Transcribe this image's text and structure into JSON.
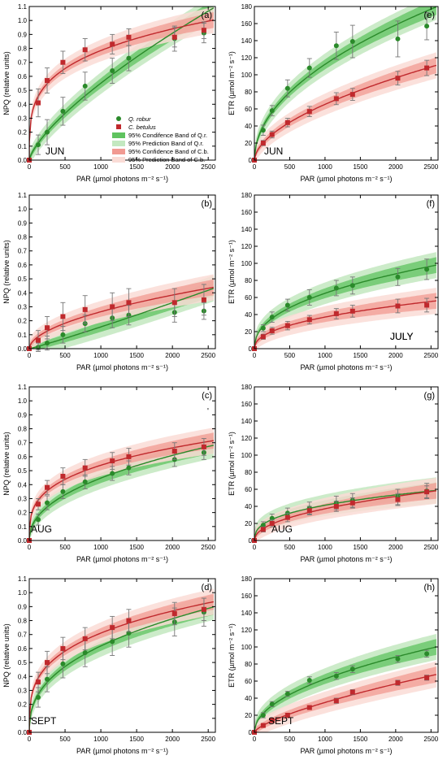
{
  "colors": {
    "qr": "#2a8a2a",
    "qr_conf": "#5fc35f",
    "qr_pred": "#c3e8c0",
    "cb": "#c0292d",
    "cb_conf": "#f19a92",
    "cb_pred": "#fadcd6"
  },
  "legend": {
    "qr_label": "Q. robur",
    "cb_label": "C. betulus",
    "qr_conf_label": "95% Condifence Band of Q.r.",
    "qr_pred_label": "95% Prediction Band of Q.r.",
    "cb_conf_label": "95% Confidence Band of C.b.",
    "cb_pred_label": "95% Prediction Band of C.b."
  },
  "stray_mark": "'",
  "chart_data": [
    {
      "panel": "(a)",
      "month": "JUN",
      "type": "scatter",
      "ylabel": "NPQ (relative units)",
      "xlabel": "PAR (µmol photons m⁻² s⁻¹)",
      "xlim": [
        0,
        2600
      ],
      "ylim": [
        0,
        1.1
      ],
      "yticks": [
        "0.0",
        "0.1",
        "0.2",
        "0.3",
        "0.4",
        "0.5",
        "0.6",
        "0.7",
        "0.8",
        "0.9",
        "1.0",
        "1.1"
      ],
      "xticks": [
        "0",
        "500",
        "1000",
        "1500",
        "2000",
        "2500"
      ],
      "x": [
        0,
        125,
        250,
        470,
        780,
        1160,
        1390,
        2030,
        2440
      ],
      "series": [
        {
          "name": "Q. robur",
          "values": [
            0,
            0.11,
            0.2,
            0.35,
            0.53,
            0.64,
            0.73,
            0.87,
            0.91
          ],
          "errors": [
            0,
            0.07,
            0.09,
            0.1,
            0.1,
            0.09,
            0.09,
            0.09,
            0.07
          ]
        },
        {
          "name": "C. betulus",
          "values": [
            0,
            0.41,
            0.57,
            0.7,
            0.79,
            0.83,
            0.88,
            0.88,
            0.93
          ],
          "errors": [
            0,
            0.1,
            0.09,
            0.08,
            0.08,
            0.07,
            0.06,
            0.07,
            0.06
          ]
        }
      ]
    },
    {
      "panel": "(e)",
      "month": "JUN",
      "type": "scatter",
      "ylabel": "ETR (µmol m⁻² s⁻¹)",
      "xlabel": "PAR (µmol photons m⁻² s⁻¹)",
      "xlim": [
        0,
        2600
      ],
      "ylim": [
        0,
        180
      ],
      "yticks": [
        "0",
        "20",
        "40",
        "60",
        "80",
        "100",
        "120",
        "140",
        "160",
        "180"
      ],
      "xticks": [
        "0",
        "500",
        "1000",
        "1500",
        "2000",
        "2500"
      ],
      "x": [
        0,
        125,
        250,
        470,
        780,
        1160,
        1390,
        2030,
        2440
      ],
      "series": [
        {
          "name": "Q. robur",
          "values": [
            0,
            35,
            58,
            84,
            108,
            134,
            139,
            142,
            157
          ],
          "errors": [
            0,
            6,
            6,
            10,
            11,
            16,
            19,
            21,
            16
          ]
        },
        {
          "name": "C. betulus",
          "values": [
            0,
            20,
            30,
            44,
            57,
            72,
            77,
            96,
            108
          ],
          "errors": [
            0,
            3,
            4,
            5,
            6,
            7,
            7,
            8,
            9
          ]
        }
      ]
    },
    {
      "panel": "(b)",
      "month": "JULY",
      "type": "scatter",
      "ylabel": "NPQ (relative units)",
      "xlabel": "PAR (µmol photons m⁻² s⁻¹)",
      "xlim": [
        0,
        2600
      ],
      "ylim": [
        0,
        1.1
      ],
      "yticks": [
        "0.0",
        "0.1",
        "0.2",
        "0.3",
        "0.4",
        "0.5",
        "0.6",
        "0.7",
        "0.8",
        "0.9",
        "1.0",
        "1.1"
      ],
      "xticks": [
        "0",
        "500",
        "1000",
        "1500",
        "2000",
        "2500"
      ],
      "x": [
        0,
        125,
        250,
        470,
        780,
        1160,
        1390,
        2030,
        2440
      ],
      "series": [
        {
          "name": "Q. robur",
          "values": [
            0,
            0.01,
            0.04,
            0.1,
            0.18,
            0.22,
            0.24,
            0.26,
            0.27
          ],
          "errors": [
            0,
            0.03,
            0.05,
            0.06,
            0.06,
            0.07,
            0.07,
            0.07,
            0.06
          ]
        },
        {
          "name": "C. betulus",
          "values": [
            0,
            0.06,
            0.15,
            0.23,
            0.28,
            0.3,
            0.33,
            0.33,
            0.35
          ],
          "errors": [
            0,
            0.07,
            0.08,
            0.1,
            0.1,
            0.1,
            0.1,
            0.1,
            0.11
          ]
        }
      ]
    },
    {
      "panel": "(f)",
      "month": "JULY",
      "type": "scatter",
      "ylabel": "ETR (µmol m⁻² s⁻¹)",
      "xlabel": "PAR (µmol photons m⁻² s⁻¹)",
      "xlim": [
        0,
        2600
      ],
      "ylim": [
        0,
        180
      ],
      "yticks": [
        "0",
        "20",
        "40",
        "60",
        "80",
        "100",
        "120",
        "140",
        "160",
        "180"
      ],
      "xticks": [
        "0",
        "500",
        "1000",
        "1500",
        "2000",
        "2500"
      ],
      "x": [
        0,
        125,
        250,
        470,
        780,
        1160,
        1390,
        2030,
        2440
      ],
      "series": [
        {
          "name": "Q. robur",
          "values": [
            0,
            24,
            37,
            51,
            60,
            71,
            74,
            84,
            93
          ],
          "errors": [
            0,
            4,
            6,
            7,
            9,
            9,
            10,
            10,
            12
          ]
        },
        {
          "name": "C. betulus",
          "values": [
            0,
            14,
            21,
            27,
            34,
            41,
            44,
            50,
            51
          ],
          "errors": [
            0,
            3,
            4,
            5,
            5,
            6,
            7,
            8,
            8
          ]
        }
      ]
    },
    {
      "panel": "(c)",
      "month": "AUG",
      "type": "scatter",
      "ylabel": "NPQ (relative units)",
      "xlabel": "PAR (µmol photons m⁻² s⁻¹)",
      "xlim": [
        0,
        2600
      ],
      "ylim": [
        0,
        1.1
      ],
      "yticks": [
        "0.0",
        "0.1",
        "0.2",
        "0.3",
        "0.4",
        "0.5",
        "0.6",
        "0.7",
        "0.8",
        "0.9",
        "1.0",
        "1.1"
      ],
      "xticks": [
        "0",
        "500",
        "1000",
        "1500",
        "2000",
        "2500"
      ],
      "x": [
        0,
        125,
        250,
        470,
        780,
        1160,
        1390,
        2030,
        2440
      ],
      "series": [
        {
          "name": "Q. robur",
          "values": [
            0,
            0.15,
            0.27,
            0.35,
            0.42,
            0.48,
            0.52,
            0.58,
            0.63
          ],
          "errors": [
            0,
            0.04,
            0.05,
            0.05,
            0.05,
            0.05,
            0.05,
            0.05,
            0.05
          ]
        },
        {
          "name": "C. betulus",
          "values": [
            0,
            0.26,
            0.38,
            0.46,
            0.52,
            0.57,
            0.6,
            0.64,
            0.67
          ],
          "errors": [
            0,
            0.04,
            0.05,
            0.06,
            0.06,
            0.06,
            0.06,
            0.06,
            0.06
          ]
        }
      ]
    },
    {
      "panel": "(g)",
      "month": "AUG",
      "type": "scatter",
      "ylabel": "ETR (µmol m⁻² s⁻¹)",
      "xlabel": "PAR (µmol photons m⁻² s⁻¹)",
      "xlim": [
        0,
        2600
      ],
      "ylim": [
        0,
        180
      ],
      "yticks": [
        "0",
        "20",
        "40",
        "60",
        "80",
        "100",
        "120",
        "140",
        "160",
        "180"
      ],
      "xticks": [
        "0",
        "500",
        "1000",
        "1500",
        "2000",
        "2500"
      ],
      "x": [
        0,
        125,
        250,
        470,
        780,
        1160,
        1390,
        2030,
        2440
      ],
      "series": [
        {
          "name": "Q. robur",
          "values": [
            0,
            18,
            26,
            32,
            38,
            44,
            47,
            51,
            58
          ],
          "errors": [
            0,
            4,
            5,
            6,
            7,
            8,
            8,
            9,
            9
          ]
        },
        {
          "name": "C. betulus",
          "values": [
            0,
            13,
            20,
            27,
            35,
            40,
            44,
            48,
            57
          ],
          "errors": [
            0,
            3,
            4,
            5,
            5,
            6,
            6,
            7,
            7
          ]
        }
      ]
    },
    {
      "panel": "(d)",
      "month": "SEPT",
      "type": "scatter",
      "ylabel": "NPQ (relative units)",
      "xlabel": "PAR (µmol photons m⁻² s⁻¹)",
      "xlim": [
        0,
        2600
      ],
      "ylim": [
        0,
        1.1
      ],
      "yticks": [
        "0.0",
        "0.1",
        "0.2",
        "0.3",
        "0.4",
        "0.5",
        "0.6",
        "0.7",
        "0.8",
        "0.9",
        "1.0",
        "1.1"
      ],
      "xticks": [
        "0",
        "500",
        "1000",
        "1500",
        "2000",
        "2500"
      ],
      "x": [
        0,
        125,
        250,
        470,
        780,
        1160,
        1390,
        2030,
        2440
      ],
      "series": [
        {
          "name": "Q. robur",
          "values": [
            0,
            0.25,
            0.38,
            0.49,
            0.57,
            0.65,
            0.71,
            0.79,
            0.86
          ],
          "errors": [
            0,
            0.07,
            0.09,
            0.1,
            0.1,
            0.1,
            0.1,
            0.1,
            0.1
          ]
        },
        {
          "name": "C. betulus",
          "values": [
            0,
            0.36,
            0.5,
            0.6,
            0.67,
            0.75,
            0.8,
            0.85,
            0.88
          ],
          "errors": [
            0,
            0.07,
            0.08,
            0.08,
            0.08,
            0.08,
            0.08,
            0.08,
            0.08
          ]
        }
      ]
    },
    {
      "panel": "(h)",
      "month": "SEPT",
      "type": "scatter",
      "ylabel": "ETR (µmol m⁻² s⁻¹)",
      "xlabel": "PAR (µmol photons m⁻² s⁻¹)",
      "xlim": [
        0,
        2600
      ],
      "ylim": [
        0,
        180
      ],
      "yticks": [
        "0",
        "20",
        "40",
        "60",
        "80",
        "100",
        "120",
        "140",
        "160",
        "180"
      ],
      "xticks": [
        "0",
        "500",
        "1000",
        "1500",
        "2000",
        "2500"
      ],
      "x": [
        0,
        125,
        250,
        470,
        780,
        1160,
        1390,
        2030,
        2440
      ],
      "series": [
        {
          "name": "Q. robur",
          "values": [
            0,
            20,
            33,
            45,
            61,
            66,
            74,
            86,
            92
          ],
          "errors": [
            0,
            3,
            3,
            3,
            4,
            4,
            4,
            4,
            4
          ]
        },
        {
          "name": "C. betulus",
          "values": [
            0,
            8,
            14,
            20,
            29,
            37,
            47,
            58,
            64
          ],
          "errors": [
            0,
            1,
            2,
            2,
            2,
            3,
            3,
            3,
            3
          ]
        }
      ]
    }
  ]
}
